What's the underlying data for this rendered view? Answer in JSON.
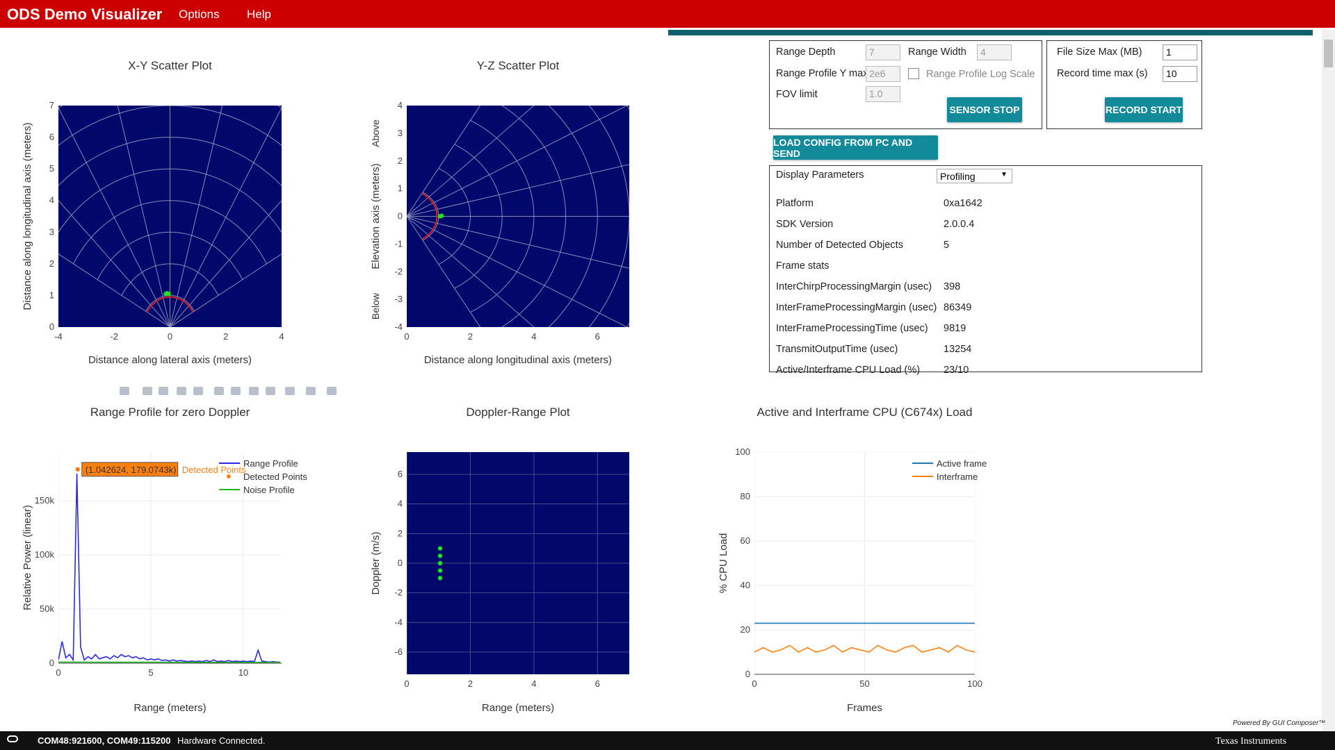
{
  "header": {
    "title": "ODS Demo Visualizer",
    "menu": [
      "Options",
      "Help"
    ]
  },
  "controls": {
    "range_depth": {
      "label": "Range Depth",
      "value": "7"
    },
    "range_width": {
      "label": "Range Width",
      "value": "4"
    },
    "y_max": {
      "label": "Range Profile Y max",
      "value": "2e6"
    },
    "log_scale": {
      "label": "Range Profile Log Scale",
      "checked": false
    },
    "fov": {
      "label": "FOV limit",
      "value": "1.0"
    },
    "file_size": {
      "label": "File Size Max (MB)",
      "value": "1"
    },
    "record_time": {
      "label": "Record time max (s)",
      "value": "10"
    },
    "sensor_button": "SENSOR STOP",
    "record_button": "RECORD START",
    "load_button": "LOAD CONFIG FROM PC AND SEND"
  },
  "stats": {
    "heading": "Display Parameters",
    "mode": "Profiling",
    "rows": [
      {
        "label": "Platform",
        "value": "0xa1642"
      },
      {
        "label": "SDK Version",
        "value": "2.0.0.4"
      },
      {
        "label": "Number of Detected Objects",
        "value": 5
      },
      {
        "label": "Frame stats"
      },
      {
        "label": "InterChirpProcessingMargin (usec)",
        "value": 398
      },
      {
        "label": "InterFrameProcessingMargin (usec)",
        "value": 86349
      },
      {
        "label": "InterFrameProcessingTime (usec)",
        "value": 9819
      },
      {
        "label": "TransmitOutputTime (usec)",
        "value": 13254
      },
      {
        "label": "Active/Interframe CPU Load (%)",
        "value": "23/10"
      }
    ]
  },
  "status": {
    "ports": "COM48:921600, COM49:115200",
    "connection": "Hardware Connected.",
    "powered": "Powered By GUI Composer™",
    "brand": "Texas Instruments"
  },
  "chart_data": [
    {
      "type": "scatter",
      "title": "X-Y Scatter Plot",
      "x_label": "Distance along lateral axis (meters)",
      "y_label": "Distance along longitudinal axis (meters)",
      "xlim": [
        -4,
        4
      ],
      "ylim": [
        0,
        7
      ],
      "xticks": [
        -4,
        -2,
        0,
        2,
        4
      ],
      "yticks": [
        0,
        1,
        2,
        3,
        4,
        5,
        6,
        7
      ],
      "grid": false,
      "polar_grid": "up",
      "plot_bg": "#00086b",
      "grid_color": "#8a8ab8",
      "series": [
        {
          "color": "#22e022",
          "x": [
            -0.15,
            -0.1,
            -0.05
          ],
          "values": [
            1.05,
            1.07,
            1.05
          ]
        }
      ]
    },
    {
      "type": "scatter",
      "title": "Y-Z Scatter Plot",
      "x_label": "Distance along longitudinal axis (meters)",
      "y_label": "Elevation axis (meters)",
      "annotations": [
        "Above",
        "Below"
      ],
      "xlim": [
        0,
        7
      ],
      "ylim": [
        -4,
        4
      ],
      "xticks": [
        0,
        2,
        4,
        6
      ],
      "yticks": [
        -4,
        -3,
        -2,
        -1,
        0,
        1,
        2,
        3,
        4
      ],
      "grid": false,
      "polar_grid": "right",
      "plot_bg": "#00086b",
      "grid_color": "#8a8ab8",
      "series": [
        {
          "color": "#22e022",
          "x": [
            1.05,
            1.1
          ],
          "values": [
            0,
            0.02
          ]
        }
      ]
    },
    {
      "type": "line",
      "title": "Range Profile for zero Doppler",
      "x_label": "Range (meters)",
      "y_label": "Relative Power (linear)",
      "xlim": [
        0,
        12.07
      ],
      "ylim": [
        0,
        195000
      ],
      "xticks": [
        0,
        5,
        10
      ],
      "yticks": [
        0,
        {
          "value": 50000,
          "label": "50k"
        },
        {
          "value": 100000,
          "label": "100k"
        },
        {
          "value": 150000,
          "label": "150k"
        }
      ],
      "grid": true,
      "legend": "upper right",
      "plot_bg": "#ffffff",
      "grid_color": "#eeeeee",
      "hover_label": "(1.042624, 179.0743k)",
      "x": [
        0,
        0.2,
        0.4,
        0.6,
        0.8,
        1.0,
        1.2,
        1.4,
        1.6,
        1.8,
        2.0,
        2.2,
        2.4,
        2.6,
        2.8,
        3.0,
        3.2,
        3.4,
        3.6,
        3.8,
        4.0,
        4.2,
        4.4,
        4.6,
        4.8,
        5.0,
        5.2,
        5.4,
        5.6,
        5.8,
        6.0,
        6.2,
        6.4,
        6.6,
        6.8,
        7.0,
        7.2,
        7.4,
        7.6,
        7.8,
        8.0,
        8.2,
        8.4,
        8.6,
        8.8,
        9.0,
        9.2,
        9.4,
        9.6,
        9.8,
        10.0,
        10.2,
        10.4,
        10.6,
        10.8,
        11.0,
        11.2,
        11.4,
        11.6,
        11.8,
        12.0
      ],
      "series": [
        {
          "name": "Range Profile",
          "color": "#2a2ae6",
          "values": [
            3000,
            20000,
            5000,
            8000,
            3000,
            175000,
            15000,
            3000,
            6000,
            4000,
            8000,
            4000,
            5000,
            6000,
            4000,
            7000,
            5000,
            8000,
            6000,
            7000,
            5000,
            6000,
            4000,
            5000,
            3000,
            4000,
            3000,
            4000,
            2500,
            3000,
            2000,
            3000,
            2000,
            2500,
            2000,
            1500,
            2000,
            1500,
            2000,
            1500,
            2500,
            1500,
            3000,
            1500,
            2000,
            1500,
            2500,
            1500,
            2000,
            1500,
            2000,
            1500,
            2000,
            1500,
            12000,
            2000,
            1500,
            1000,
            1500,
            1000,
            1000
          ]
        },
        {
          "name": "Detected Points",
          "color": "#ff7f0e",
          "mode": "markers",
          "x": [
            1.042624
          ],
          "values": [
            179074.3
          ]
        },
        {
          "name": "Noise Profile",
          "color": "#1fb81f",
          "x": [
            0,
            3,
            6,
            9,
            12
          ],
          "values": [
            1000,
            900,
            900,
            800,
            800
          ]
        }
      ]
    },
    {
      "type": "scatter",
      "title": "Doppler-Range Plot",
      "x_label": "Range (meters)",
      "y_label": "Doppler (m/s)",
      "xlim": [
        0,
        7
      ],
      "ylim": [
        -7.5,
        7.5
      ],
      "xticks": [
        0,
        2,
        4,
        6
      ],
      "yticks": [
        -6,
        -4,
        -2,
        0,
        2,
        4,
        6
      ],
      "grid": true,
      "plot_bg": "#00086b",
      "grid_color": "#4a4a8c",
      "series": [
        {
          "color": "#22e022",
          "x": [
            1.05,
            1.05,
            1.05,
            1.05,
            1.05
          ],
          "values": [
            -1,
            -0.5,
            0,
            0.5,
            1
          ]
        }
      ]
    },
    {
      "type": "line",
      "title": "Active and Interframe  CPU (C674x) Load",
      "x_label": "Frames",
      "y_label": "% CPU Load",
      "xlim": [
        0,
        100
      ],
      "ylim": [
        0,
        100
      ],
      "xticks": [
        0,
        50,
        100
      ],
      "yticks": [
        0,
        20,
        40,
        60,
        80,
        100
      ],
      "grid": true,
      "legend": "upper right",
      "plot_bg": "#ffffff",
      "grid_color": "#eeeeee",
      "x": [
        0,
        4,
        8,
        12,
        16,
        20,
        24,
        28,
        32,
        36,
        40,
        44,
        48,
        52,
        56,
        60,
        64,
        68,
        72,
        76,
        80,
        84,
        88,
        92,
        96,
        100
      ],
      "series": [
        {
          "name": "Active frame",
          "color": "#1f77b4",
          "values": [
            23,
            23,
            23,
            23,
            23,
            23,
            23,
            23,
            23,
            23,
            23,
            23,
            23,
            23,
            23,
            23,
            23,
            23,
            23,
            23,
            23,
            23,
            23,
            23,
            23,
            23
          ]
        },
        {
          "name": "Interframe",
          "color": "#ff7f0e",
          "values": [
            10,
            12,
            10,
            11,
            13,
            10,
            12,
            10,
            11,
            13,
            10,
            12,
            11,
            10,
            13,
            11,
            10,
            12,
            13,
            10,
            11,
            12,
            10,
            13,
            11,
            10
          ]
        }
      ]
    }
  ]
}
